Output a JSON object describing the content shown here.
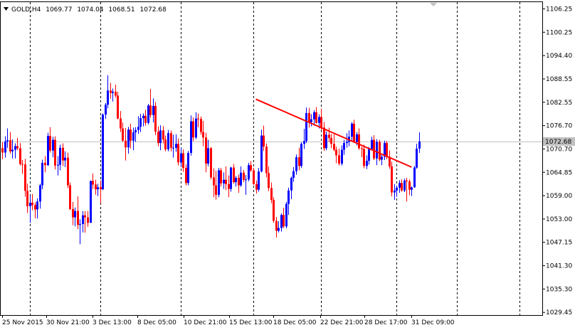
{
  "header": {
    "symbol": "GOLD,H4",
    "open": "1069.77",
    "high": "1074.04",
    "low": "1068.51",
    "close": "1072.68"
  },
  "colors": {
    "bull": "#0000ff",
    "bear": "#ff0000",
    "trendline": "#ff0000",
    "grid": "#000000",
    "price_line": "#c0c0c0",
    "background": "#ffffff",
    "price_label_bg": "#c0c0c0"
  },
  "chart_data": {
    "type": "candlestick",
    "title": "",
    "xlabel": "",
    "ylabel": "",
    "ylim": [
      1029.45,
      1106.25
    ],
    "yticks": [
      "1106.25",
      "1100.25",
      "1094.40",
      "1088.55",
      "1082.55",
      "1076.70",
      "1070.70",
      "1064.85",
      "1059.00",
      "1053.00",
      "1047.15",
      "1041.30",
      "1035.30",
      "1029.45"
    ],
    "xticks": [
      "25 Nov 2015",
      "30 Nov 21:00",
      "3 Dec 13:00",
      "8 Dec 05:00",
      "10 Dec 21:00",
      "15 Dec 13:00",
      "18 Dec 05:00",
      "22 Dec 21:00",
      "28 Dec 17:00",
      "31 Dec 09:00"
    ],
    "vgrid_after_bar": [
      11,
      39,
      71,
      100,
      127,
      157,
      181,
      206
    ],
    "current_price": "1072.68",
    "trendline": {
      "from_bar": 101,
      "from_price": 1083.4,
      "to_bar": 163,
      "to_price": 1066.2
    },
    "candles": [
      [
        1071.0,
        1072.5,
        1068.2,
        1069.9
      ],
      [
        1069.9,
        1074.0,
        1068.6,
        1072.7
      ],
      [
        1072.7,
        1076.0,
        1071.1,
        1073.0
      ],
      [
        1073.0,
        1075.1,
        1069.6,
        1070.2
      ],
      [
        1070.2,
        1073.2,
        1068.4,
        1070.6
      ],
      [
        1070.6,
        1072.2,
        1068.4,
        1071.5
      ],
      [
        1071.5,
        1073.6,
        1070.5,
        1071.0
      ],
      [
        1071.0,
        1072.3,
        1066.6,
        1067.0
      ],
      [
        1067.0,
        1068.0,
        1064.5,
        1066.9
      ],
      [
        1066.9,
        1068.3,
        1058.7,
        1060.2
      ],
      [
        1060.2,
        1062.0,
        1054.6,
        1056.3
      ],
      [
        1056.3,
        1058.9,
        1052.1,
        1057.2
      ],
      [
        1057.2,
        1059.4,
        1055.3,
        1056.6
      ],
      [
        1056.6,
        1057.3,
        1053.3,
        1055.5
      ],
      [
        1055.5,
        1058.3,
        1053.2,
        1057.5
      ],
      [
        1057.5,
        1062.0,
        1055.7,
        1061.6
      ],
      [
        1061.6,
        1068.1,
        1060.6,
        1067.3
      ],
      [
        1067.3,
        1069.0,
        1064.9,
        1066.7
      ],
      [
        1066.7,
        1074.9,
        1066.5,
        1074.1
      ],
      [
        1074.1,
        1076.3,
        1069.9,
        1070.4
      ],
      [
        1070.4,
        1073.9,
        1068.7,
        1073.1
      ],
      [
        1073.1,
        1074.0,
        1065.6,
        1066.6
      ],
      [
        1066.6,
        1069.0,
        1064.1,
        1066.8
      ],
      [
        1066.8,
        1071.9,
        1065.4,
        1071.1
      ],
      [
        1071.1,
        1072.2,
        1066.5,
        1067.9
      ],
      [
        1067.9,
        1070.2,
        1066.2,
        1068.6
      ],
      [
        1068.6,
        1069.9,
        1060.9,
        1061.6
      ],
      [
        1061.6,
        1062.3,
        1055.3,
        1055.6
      ],
      [
        1055.6,
        1057.4,
        1051.5,
        1053.5
      ],
      [
        1053.5,
        1056.0,
        1051.2,
        1055.1
      ],
      [
        1055.1,
        1058.8,
        1050.5,
        1051.6
      ],
      [
        1051.6,
        1053.0,
        1046.7,
        1051.8
      ],
      [
        1051.8,
        1055.1,
        1049.7,
        1054.0
      ],
      [
        1054.0,
        1055.1,
        1049.6,
        1053.5
      ],
      [
        1053.5,
        1055.1,
        1051.1,
        1052.1
      ],
      [
        1052.1,
        1062.8,
        1052.3,
        1062.7
      ],
      [
        1062.7,
        1064.6,
        1060.6,
        1061.8
      ],
      [
        1061.8,
        1063.0,
        1059.2,
        1060.6
      ],
      [
        1060.6,
        1062.0,
        1058.9,
        1061.1
      ],
      [
        1061.1,
        1062.8,
        1057.1,
        1060.6
      ],
      [
        1060.6,
        1079.8,
        1060.4,
        1079.5
      ],
      [
        1079.5,
        1082.4,
        1078.4,
        1082.0
      ],
      [
        1082.0,
        1089.5,
        1081.1,
        1085.6
      ],
      [
        1085.6,
        1087.5,
        1083.5,
        1085.0
      ],
      [
        1085.0,
        1086.1,
        1082.8,
        1085.3
      ],
      [
        1085.3,
        1087.1,
        1083.8,
        1084.3
      ],
      [
        1084.3,
        1085.3,
        1078.3,
        1078.5
      ],
      [
        1078.5,
        1080.4,
        1075.1,
        1076.0
      ],
      [
        1076.0,
        1077.5,
        1072.6,
        1072.9
      ],
      [
        1072.9,
        1076.1,
        1067.9,
        1071.2
      ],
      [
        1071.2,
        1076.4,
        1069.6,
        1075.7
      ],
      [
        1075.7,
        1077.2,
        1070.9,
        1072.9
      ],
      [
        1072.9,
        1076.2,
        1070.5,
        1075.0
      ],
      [
        1075.0,
        1076.3,
        1072.6,
        1075.6
      ],
      [
        1075.6,
        1079.1,
        1074.6,
        1076.4
      ],
      [
        1076.4,
        1079.7,
        1075.1,
        1078.6
      ],
      [
        1078.6,
        1079.8,
        1076.5,
        1079.2
      ],
      [
        1079.2,
        1080.7,
        1076.7,
        1077.4
      ],
      [
        1077.4,
        1082.2,
        1077.0,
        1081.8
      ],
      [
        1081.8,
        1086.0,
        1078.7,
        1079.4
      ],
      [
        1079.4,
        1083.6,
        1077.5,
        1081.7
      ],
      [
        1081.7,
        1082.7,
        1074.3,
        1075.2
      ],
      [
        1075.2,
        1076.5,
        1071.5,
        1072.3
      ],
      [
        1072.3,
        1076.8,
        1070.5,
        1075.5
      ],
      [
        1075.5,
        1076.6,
        1072.2,
        1073.2
      ],
      [
        1073.2,
        1074.2,
        1070.2,
        1070.7
      ],
      [
        1070.7,
        1075.6,
        1070.2,
        1074.8
      ],
      [
        1074.8,
        1075.5,
        1070.2,
        1071.1
      ],
      [
        1071.1,
        1074.4,
        1068.6,
        1071.1
      ],
      [
        1071.1,
        1074.5,
        1070.1,
        1072.1
      ],
      [
        1072.1,
        1073.5,
        1066.6,
        1067.4
      ],
      [
        1067.4,
        1071.1,
        1066.2,
        1069.7
      ],
      [
        1069.7,
        1070.7,
        1065.0,
        1066.0
      ],
      [
        1066.0,
        1066.9,
        1061.6,
        1062.2
      ],
      [
        1062.2,
        1070.3,
        1061.6,
        1069.8
      ],
      [
        1069.8,
        1079.3,
        1069.1,
        1077.8
      ],
      [
        1077.8,
        1078.8,
        1072.8,
        1073.7
      ],
      [
        1073.7,
        1080.1,
        1073.3,
        1078.5
      ],
      [
        1078.5,
        1079.8,
        1076.3,
        1078.4
      ],
      [
        1078.4,
        1079.0,
        1074.4,
        1075.1
      ],
      [
        1075.1,
        1077.9,
        1071.5,
        1073.7
      ],
      [
        1073.7,
        1074.9,
        1064.9,
        1067.1
      ],
      [
        1067.1,
        1073.1,
        1066.4,
        1071.0
      ],
      [
        1071.0,
        1071.3,
        1063.1,
        1063.6
      ],
      [
        1063.6,
        1065.9,
        1058.6,
        1061.6
      ],
      [
        1061.6,
        1065.3,
        1058.0,
        1059.2
      ],
      [
        1059.2,
        1066.0,
        1058.6,
        1065.4
      ],
      [
        1065.4,
        1066.0,
        1061.3,
        1062.1
      ],
      [
        1062.1,
        1064.9,
        1060.7,
        1063.0
      ],
      [
        1063.0,
        1066.4,
        1060.4,
        1061.9
      ],
      [
        1061.9,
        1064.1,
        1058.6,
        1060.7
      ],
      [
        1060.7,
        1066.3,
        1060.0,
        1066.1
      ],
      [
        1066.1,
        1067.0,
        1062.0,
        1062.4
      ],
      [
        1062.4,
        1063.9,
        1061.3,
        1063.5
      ],
      [
        1063.5,
        1064.3,
        1059.7,
        1061.6
      ],
      [
        1061.6,
        1066.4,
        1061.2,
        1064.8
      ],
      [
        1064.8,
        1065.5,
        1062.4,
        1063.0
      ],
      [
        1063.0,
        1064.2,
        1059.2,
        1063.1
      ],
      [
        1063.1,
        1067.3,
        1062.6,
        1066.7
      ],
      [
        1066.7,
        1067.7,
        1065.0,
        1065.4
      ],
      [
        1065.4,
        1066.0,
        1061.7,
        1061.9
      ],
      [
        1061.9,
        1062.8,
        1059.5,
        1060.5
      ],
      [
        1060.5,
        1066.0,
        1060.0,
        1065.1
      ],
      [
        1065.1,
        1075.7,
        1064.9,
        1074.2
      ],
      [
        1074.2,
        1076.7,
        1070.3,
        1071.4
      ],
      [
        1071.4,
        1072.2,
        1063.6,
        1064.7
      ],
      [
        1064.7,
        1066.4,
        1060.1,
        1060.9
      ],
      [
        1060.9,
        1062.3,
        1057.1,
        1057.9
      ],
      [
        1057.9,
        1058.6,
        1052.1,
        1052.6
      ],
      [
        1052.6,
        1053.6,
        1048.4,
        1050.1
      ],
      [
        1050.1,
        1052.5,
        1049.7,
        1050.8
      ],
      [
        1050.8,
        1054.5,
        1049.9,
        1054.1
      ],
      [
        1054.1,
        1055.9,
        1050.8,
        1051.2
      ],
      [
        1051.2,
        1057.4,
        1050.7,
        1056.9
      ],
      [
        1056.9,
        1061.0,
        1054.1,
        1060.3
      ],
      [
        1060.3,
        1063.8,
        1058.1,
        1063.5
      ],
      [
        1063.5,
        1066.2,
        1062.5,
        1065.2
      ],
      [
        1065.2,
        1069.4,
        1064.3,
        1068.7
      ],
      [
        1068.7,
        1071.1,
        1065.4,
        1066.5
      ],
      [
        1066.5,
        1072.5,
        1066.0,
        1072.1
      ],
      [
        1072.1,
        1075.9,
        1070.8,
        1072.8
      ],
      [
        1072.8,
        1081.3,
        1072.3,
        1079.9
      ],
      [
        1079.9,
        1081.2,
        1076.2,
        1077.6
      ],
      [
        1077.6,
        1079.6,
        1076.5,
        1078.3
      ],
      [
        1078.3,
        1080.6,
        1076.7,
        1080.1
      ],
      [
        1080.1,
        1081.4,
        1077.2,
        1077.4
      ],
      [
        1077.4,
        1079.6,
        1076.0,
        1078.9
      ],
      [
        1078.9,
        1081.0,
        1075.6,
        1076.2
      ],
      [
        1076.2,
        1077.6,
        1070.3,
        1071.0
      ],
      [
        1071.0,
        1075.2,
        1070.5,
        1074.4
      ],
      [
        1074.4,
        1076.2,
        1072.5,
        1073.6
      ],
      [
        1073.6,
        1074.6,
        1071.0,
        1072.1
      ],
      [
        1072.1,
        1074.5,
        1070.2,
        1070.6
      ],
      [
        1070.6,
        1071.4,
        1067.2,
        1069.2
      ],
      [
        1069.2,
        1070.9,
        1066.6,
        1067.1
      ],
      [
        1067.1,
        1071.7,
        1066.6,
        1070.6
      ],
      [
        1070.6,
        1073.1,
        1069.3,
        1072.3
      ],
      [
        1072.3,
        1074.8,
        1071.1,
        1072.6
      ],
      [
        1072.6,
        1075.5,
        1071.5,
        1073.9
      ],
      [
        1073.9,
        1077.6,
        1072.9,
        1077.2
      ],
      [
        1077.2,
        1078.2,
        1072.4,
        1072.6
      ],
      [
        1072.6,
        1075.1,
        1071.7,
        1074.5
      ],
      [
        1074.5,
        1076.0,
        1070.6,
        1071.0
      ],
      [
        1071.0,
        1071.4,
        1068.7,
        1070.8
      ],
      [
        1070.8,
        1071.9,
        1065.9,
        1066.5
      ],
      [
        1066.5,
        1069.2,
        1065.7,
        1067.8
      ],
      [
        1067.8,
        1071.3,
        1066.8,
        1070.8
      ],
      [
        1070.8,
        1073.9,
        1070.5,
        1073.1
      ],
      [
        1073.1,
        1074.3,
        1068.0,
        1068.4
      ],
      [
        1068.4,
        1073.3,
        1066.7,
        1072.6
      ],
      [
        1072.6,
        1073.1,
        1067.7,
        1068.1
      ],
      [
        1068.1,
        1069.3,
        1066.7,
        1068.8
      ],
      [
        1068.8,
        1072.9,
        1068.0,
        1072.3
      ],
      [
        1072.3,
        1072.8,
        1068.2,
        1068.8
      ],
      [
        1068.8,
        1070.4,
        1065.8,
        1066.4
      ],
      [
        1066.4,
        1067.6,
        1058.8,
        1059.8
      ],
      [
        1059.8,
        1061.9,
        1057.9,
        1060.3
      ],
      [
        1060.3,
        1061.5,
        1058.7,
        1061.0
      ],
      [
        1061.0,
        1062.9,
        1059.7,
        1062.2
      ],
      [
        1062.2,
        1063.1,
        1060.0,
        1060.3
      ],
      [
        1060.3,
        1063.3,
        1059.9,
        1062.8
      ],
      [
        1062.8,
        1063.5,
        1057.5,
        1062.6
      ],
      [
        1062.6,
        1063.1,
        1059.1,
        1060.5
      ],
      [
        1060.5,
        1061.3,
        1058.9,
        1061.1
      ],
      [
        1061.1,
        1066.5,
        1061.0,
        1066.1
      ],
      [
        1066.1,
        1072.1,
        1065.8,
        1070.9
      ],
      [
        1070.9,
        1075.0,
        1069.8,
        1072.7
      ]
    ]
  }
}
